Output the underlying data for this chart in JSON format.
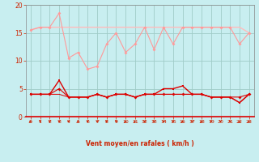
{
  "x": [
    0,
    1,
    2,
    3,
    4,
    5,
    6,
    7,
    8,
    9,
    10,
    11,
    12,
    13,
    14,
    15,
    16,
    17,
    18,
    19,
    20,
    21,
    22,
    23
  ],
  "line1": [
    15.5,
    16.0,
    16.0,
    18.5,
    10.5,
    11.5,
    8.5,
    9.0,
    13.0,
    15.0,
    11.5,
    13.0,
    16.0,
    12.0,
    16.0,
    13.0,
    16.0,
    16.0,
    16.0,
    16.0,
    16.0,
    16.0,
    13.0,
    15.0
  ],
  "line2": [
    15.5,
    16.0,
    16.0,
    16.0,
    16.0,
    16.0,
    16.0,
    16.0,
    16.0,
    16.0,
    16.0,
    16.0,
    16.0,
    16.0,
    16.0,
    16.0,
    16.0,
    16.0,
    16.0,
    16.0,
    16.0,
    16.0,
    16.0,
    15.0
  ],
  "line3": [
    4.0,
    4.0,
    4.0,
    6.5,
    3.5,
    3.5,
    3.5,
    4.0,
    3.5,
    4.0,
    4.0,
    3.5,
    4.0,
    4.0,
    5.0,
    5.0,
    5.5,
    4.0,
    4.0,
    3.5,
    3.5,
    3.5,
    2.5,
    4.0
  ],
  "line4": [
    4.0,
    4.0,
    4.0,
    5.0,
    3.5,
    3.5,
    3.5,
    4.0,
    3.5,
    4.0,
    4.0,
    3.5,
    4.0,
    4.0,
    4.0,
    4.0,
    4.0,
    4.0,
    4.0,
    3.5,
    3.5,
    3.5,
    3.5,
    4.0
  ],
  "line5": [
    4.0,
    4.0,
    4.0,
    4.0,
    3.5,
    3.5,
    3.5,
    4.0,
    3.5,
    4.0,
    4.0,
    3.5,
    4.0,
    4.0,
    4.0,
    4.0,
    4.0,
    4.0,
    4.0,
    3.5,
    3.5,
    3.5,
    2.5,
    4.0
  ],
  "wind_angles": [
    225,
    270,
    270,
    270,
    270,
    225,
    270,
    270,
    270,
    270,
    225,
    225,
    270,
    270,
    270,
    270,
    225,
    270,
    225,
    270,
    270,
    270,
    225,
    225
  ],
  "bg_color": "#c8eef0",
  "grid_color": "#a0ccc8",
  "line1_color": "#ff9999",
  "line2_color": "#ffbbbb",
  "line3_color": "#dd0000",
  "line4_color": "#dd0000",
  "line5_color": "#dd0000",
  "arrow_color": "#cc2200",
  "axis_label_color": "#cc2200",
  "tick_color": "#cc2200",
  "xlabel": "Vent moyen/en rafales ( km/h )",
  "ylim": [
    0,
    20
  ],
  "xlim": [
    -0.5,
    23.5
  ],
  "yticks": [
    0,
    5,
    10,
    15,
    20
  ],
  "xticks": [
    0,
    1,
    2,
    3,
    4,
    5,
    6,
    7,
    8,
    9,
    10,
    11,
    12,
    13,
    14,
    15,
    16,
    17,
    18,
    19,
    20,
    21,
    22,
    23
  ]
}
